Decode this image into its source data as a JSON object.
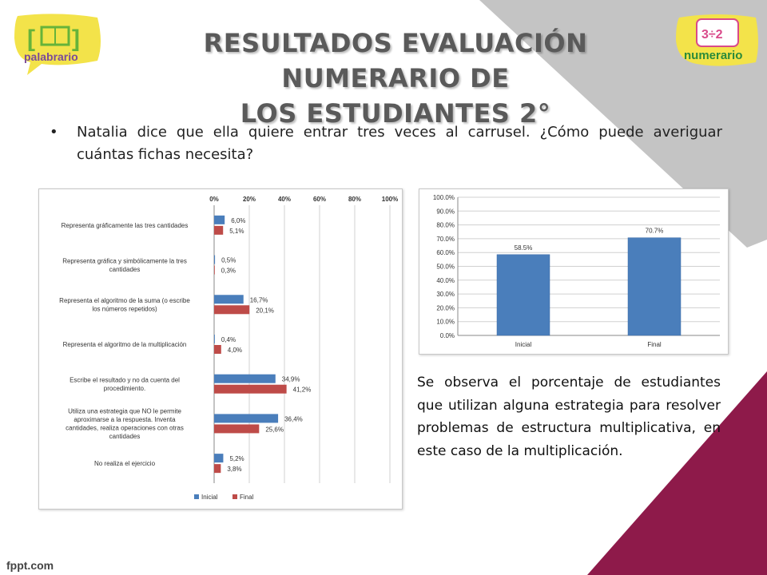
{
  "slide": {
    "title_line1": "RESULTADOS EVALUACIÓN NUMERARIO DE",
    "title_line2": "LOS ESTUDIANTES 2°",
    "bullet": "Natalia dice que ella quiere entrar tres veces al carrusel. ¿Cómo puede averiguar cuántas fichas necesita?",
    "note": "Se observa el porcentaje de estudiantes que utilizan alguna estrategia para resolver problemas de estructura multiplicativa, en este caso de la multiplicación.",
    "footer": "fppt.com",
    "logo_left_text": "palabrario",
    "logo_right_text": "numerario",
    "colors": {
      "accent_magenta": "#8e1a4a",
      "gray_band": "#c4c4c4",
      "logo_yellow": "#f3e34a",
      "logo_green": "#66b33a"
    }
  },
  "chart_data": [
    {
      "type": "bar",
      "orientation": "horizontal",
      "categories": [
        [
          "Representa gráficamente las tres cantidades"
        ],
        [
          "Representa gráfica y simbólicamente la tres",
          "cantidades"
        ],
        [
          "Representa el algoritmo de la suma (o escribe",
          "los números repetidos)"
        ],
        [
          "Representa el algoritmo de la multiplicación"
        ],
        [
          "Escribe el resultado y no da cuenta del",
          "procedimiento."
        ],
        [
          "Utiliza una estrategia que NO le permite",
          "aproximarse a la respuesta. Inventa",
          "cantidades, realiza operaciones con otras",
          "cantidades"
        ],
        [
          "No realiza el ejercicio"
        ]
      ],
      "series": [
        {
          "name": "Inicial",
          "color": "#4a7ebb",
          "values": [
            6.0,
            0.5,
            16.7,
            0.4,
            34.9,
            36.4,
            5.2
          ],
          "labels": [
            "6,0%",
            "0,5%",
            "16,7%",
            "0,4%",
            "34,9%",
            "36,4%",
            "5,2%"
          ]
        },
        {
          "name": "Final",
          "color": "#be4b48",
          "values": [
            5.1,
            0.3,
            20.1,
            4.0,
            41.2,
            25.6,
            3.8
          ],
          "labels": [
            "5,1%",
            "0,3%",
            "20,1%",
            "4,0%",
            "41,2%",
            "25,6%",
            "3,8%"
          ]
        }
      ],
      "xlim": [
        0,
        100
      ],
      "ticks": [
        0,
        20,
        40,
        60,
        80,
        100
      ],
      "tick_labels": [
        "0%",
        "20%",
        "40%",
        "60%",
        "80%",
        "100%"
      ],
      "grid": true,
      "legend": "bottom"
    },
    {
      "type": "bar",
      "categories": [
        "Inicial",
        "Final"
      ],
      "values": [
        58.5,
        70.7
      ],
      "labels": [
        "58.5%",
        "70.7%"
      ],
      "color": "#4a7ebb",
      "ylim": [
        0,
        100
      ],
      "ticks": [
        0,
        10,
        20,
        30,
        40,
        50,
        60,
        70,
        80,
        90,
        100
      ],
      "tick_labels": [
        "0.0%",
        "10.0%",
        "20.0%",
        "30.0%",
        "40.0%",
        "50.0%",
        "60.0%",
        "70.0%",
        "80.0%",
        "90.0%",
        "100.0%"
      ],
      "grid": true
    }
  ]
}
